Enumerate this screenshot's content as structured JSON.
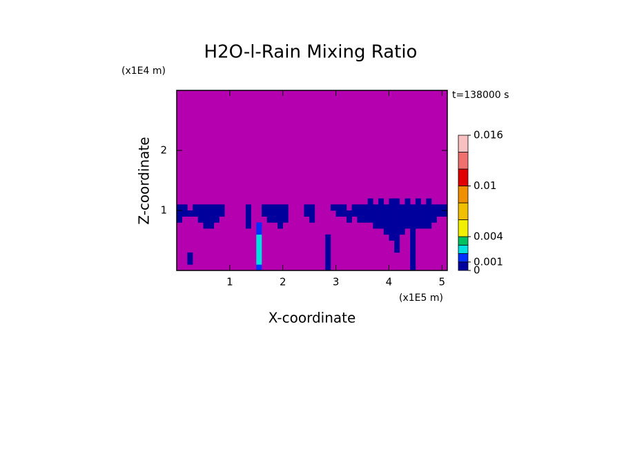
{
  "chart_data": {
    "type": "contour",
    "title": "H2O-l-Rain Mixing Ratio",
    "x_label": "X-coordinate",
    "y_label": "Z-coordinate",
    "x_multiplier": "(x1E5 m)",
    "y_multiplier": "(x1E4 m)",
    "time_label": "t=138000 s",
    "xlim": [
      0,
      5.1
    ],
    "ylim": [
      0,
      3
    ],
    "xticks": [
      1,
      2,
      3,
      4,
      5
    ],
    "yticks": [
      1,
      2
    ],
    "background": "#b400ae",
    "levels": [
      0,
      0.001,
      0.002,
      0.003,
      0.004,
      0.006,
      0.008,
      0.01,
      0.012,
      0.014,
      0.016
    ],
    "colors": [
      "#00009c",
      "#0030ff",
      "#00e0e0",
      "#00c060",
      "#f0f000",
      "#f0c000",
      "#f09000",
      "#e00000",
      "#f07070",
      "#f8c0c0"
    ],
    "colorbar_ticks": [
      0,
      0.001,
      0.004,
      0.01,
      0.016
    ],
    "x": [
      0.05,
      0.15,
      0.25,
      0.35,
      0.45,
      0.55,
      0.65,
      0.75,
      0.85,
      0.95,
      1.05,
      1.15,
      1.25,
      1.35,
      1.45,
      1.55,
      1.65,
      1.75,
      1.85,
      1.95,
      2.05,
      2.15,
      2.25,
      2.35,
      2.45,
      2.55,
      2.65,
      2.75,
      2.85,
      2.95,
      3.05,
      3.15,
      3.25,
      3.35,
      3.45,
      3.55,
      3.65,
      3.75,
      3.85,
      3.95,
      4.05,
      4.15,
      4.25,
      4.35,
      4.45,
      4.55,
      4.65,
      4.75,
      4.85,
      4.95,
      5.05
    ],
    "y": [
      0.05,
      0.15,
      0.25,
      0.35,
      0.45,
      0.55,
      0.65,
      0.75,
      0.85,
      0.95,
      1.05,
      1.15
    ],
    "z": [
      [
        0,
        0,
        0,
        0,
        0,
        0,
        0,
        0,
        0,
        0,
        0,
        0,
        0,
        0,
        0,
        0.0015,
        0,
        0,
        0,
        0,
        0,
        0,
        0,
        0,
        0,
        0,
        0,
        0,
        0.0005,
        0,
        0,
        0,
        0,
        0,
        0,
        0,
        0,
        0,
        0,
        0,
        0,
        0,
        0,
        0,
        0.0005,
        0,
        0,
        0,
        0,
        0,
        0
      ],
      [
        0,
        0,
        0.0005,
        0,
        0,
        0,
        0,
        0,
        0,
        0,
        0,
        0,
        0,
        0,
        0,
        0.0025,
        0,
        0,
        0,
        0,
        0,
        0,
        0,
        0,
        0,
        0,
        0,
        0,
        0.0005,
        0,
        0,
        0,
        0,
        0,
        0,
        0,
        0,
        0,
        0,
        0,
        0,
        0,
        0,
        0,
        0.0005,
        0,
        0,
        0,
        0,
        0,
        0
      ],
      [
        0,
        0,
        0.0005,
        0,
        0,
        0,
        0,
        0,
        0,
        0,
        0,
        0,
        0,
        0,
        0,
        0.0025,
        0,
        0,
        0,
        0,
        0,
        0,
        0,
        0,
        0,
        0,
        0,
        0,
        0.0005,
        0,
        0,
        0,
        0,
        0,
        0,
        0,
        0,
        0,
        0,
        0,
        0,
        0,
        0,
        0,
        0.0005,
        0,
        0,
        0,
        0,
        0,
        0
      ],
      [
        0,
        0,
        0,
        0,
        0,
        0,
        0,
        0,
        0,
        0,
        0,
        0,
        0,
        0,
        0,
        0.0025,
        0,
        0,
        0,
        0,
        0,
        0,
        0,
        0,
        0,
        0,
        0,
        0,
        0.0005,
        0,
        0,
        0,
        0,
        0,
        0,
        0,
        0,
        0,
        0,
        0,
        0,
        0.0005,
        0,
        0,
        0.0005,
        0,
        0,
        0,
        0,
        0,
        0
      ],
      [
        0,
        0,
        0,
        0,
        0,
        0,
        0,
        0,
        0,
        0,
        0,
        0,
        0,
        0,
        0,
        0.0025,
        0,
        0,
        0,
        0,
        0,
        0,
        0,
        0,
        0,
        0,
        0,
        0,
        0.0005,
        0,
        0,
        0,
        0,
        0,
        0,
        0,
        0,
        0,
        0,
        0,
        0,
        0.0005,
        0,
        0,
        0.0005,
        0,
        0,
        0,
        0,
        0,
        0
      ],
      [
        0,
        0,
        0,
        0,
        0,
        0,
        0,
        0,
        0,
        0,
        0,
        0,
        0,
        0,
        0,
        0.0025,
        0,
        0,
        0,
        0,
        0,
        0,
        0,
        0,
        0,
        0,
        0,
        0,
        0.0005,
        0,
        0,
        0,
        0,
        0,
        0,
        0,
        0,
        0,
        0,
        0,
        0.0005,
        0.0005,
        0,
        0,
        0.0005,
        0,
        0,
        0,
        0,
        0,
        0
      ],
      [
        0,
        0,
        0,
        0,
        0,
        0,
        0,
        0,
        0,
        0,
        0,
        0,
        0,
        0,
        0,
        0.0015,
        0,
        0,
        0,
        0,
        0,
        0,
        0,
        0,
        0,
        0,
        0,
        0,
        0,
        0,
        0,
        0,
        0,
        0,
        0,
        0,
        0,
        0,
        0,
        0.0005,
        0.0005,
        0.0005,
        0.0005,
        0,
        0.0005,
        0,
        0,
        0,
        0,
        0,
        0
      ],
      [
        0,
        0,
        0,
        0,
        0,
        0.0005,
        0.0005,
        0,
        0,
        0,
        0,
        0,
        0,
        0.0005,
        0,
        0.0015,
        0,
        0,
        0,
        0.0005,
        0,
        0,
        0,
        0,
        0,
        0,
        0,
        0,
        0,
        0,
        0,
        0,
        0,
        0,
        0,
        0,
        0,
        0.0005,
        0.0005,
        0.0005,
        0.0005,
        0.0005,
        0.0005,
        0.0005,
        0.0005,
        0.0005,
        0.0005,
        0.0005,
        0,
        0,
        0
      ],
      [
        0.0005,
        0,
        0,
        0,
        0.0005,
        0.0005,
        0.0005,
        0.0005,
        0,
        0,
        0,
        0,
        0,
        0.0005,
        0,
        0,
        0,
        0.0005,
        0.0005,
        0.0005,
        0.0005,
        0,
        0,
        0,
        0,
        0.0005,
        0,
        0,
        0,
        0,
        0,
        0,
        0.0005,
        0,
        0.0005,
        0.0005,
        0.0005,
        0.0005,
        0.0005,
        0.0005,
        0.0005,
        0.0005,
        0.0005,
        0.0005,
        0.0005,
        0.0005,
        0.0005,
        0.0005,
        0.0005,
        0,
        0
      ],
      [
        0.0005,
        0.0005,
        0.0005,
        0.0005,
        0.0005,
        0.0005,
        0.0005,
        0.0005,
        0.0005,
        0,
        0,
        0,
        0,
        0.0005,
        0,
        0,
        0.0005,
        0.0005,
        0.0005,
        0.0005,
        0.0005,
        0,
        0,
        0,
        0.0005,
        0.0005,
        0,
        0,
        0,
        0,
        0.0005,
        0.0005,
        0.0005,
        0.0005,
        0.0005,
        0.0005,
        0.0005,
        0.0005,
        0.0005,
        0.0005,
        0.0005,
        0.0005,
        0.0005,
        0.0005,
        0.0005,
        0.0005,
        0.0005,
        0.0005,
        0.0005,
        0.0005,
        0.0005
      ],
      [
        0.0005,
        0.0005,
        0,
        0.0005,
        0.0005,
        0.0005,
        0.0005,
        0.0005,
        0.0005,
        0,
        0,
        0,
        0,
        0.0005,
        0,
        0,
        0.0005,
        0.0005,
        0.0005,
        0.0005,
        0.0005,
        0,
        0,
        0,
        0.0005,
        0.0005,
        0,
        0,
        0,
        0.0005,
        0.0005,
        0.0005,
        0,
        0.0005,
        0.0005,
        0.0005,
        0.0005,
        0.0005,
        0.0005,
        0.0005,
        0.0005,
        0.0005,
        0.0005,
        0.0005,
        0.0005,
        0.0005,
        0.0005,
        0.0005,
        0.0005,
        0.0005,
        0.0005
      ],
      [
        0,
        0,
        0,
        0,
        0,
        0,
        0,
        0,
        0,
        0,
        0,
        0,
        0,
        0,
        0,
        0,
        0,
        0,
        0,
        0,
        0,
        0,
        0,
        0,
        0,
        0,
        0,
        0,
        0,
        0,
        0,
        0,
        0,
        0,
        0,
        0,
        0.0005,
        0,
        0.0005,
        0,
        0.0005,
        0.0005,
        0,
        0.0005,
        0,
        0.0005,
        0,
        0.0005,
        0,
        0,
        0
      ]
    ]
  }
}
